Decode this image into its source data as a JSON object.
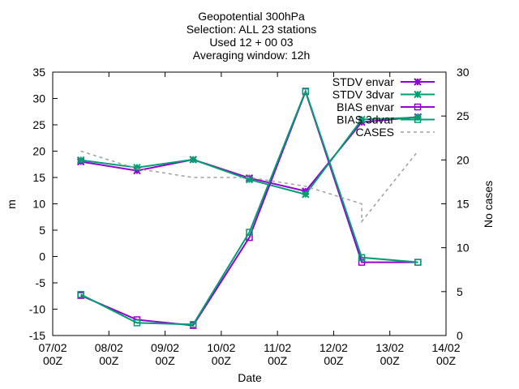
{
  "title_lines": [
    "Geopotential 300hPa",
    "Selection: ALL      23 stations",
    "Used 12 + 00 03",
    "Averaging window: 12h"
  ],
  "colors": {
    "envar": "#9400d3",
    "3dvar": "#009e73",
    "cases": "#a0a0a0"
  },
  "chart_data": {
    "type": "line",
    "title": "Geopotential 300hPa",
    "xlabel": "Date",
    "ylabel": "m",
    "y2label": "No cases",
    "xlim": [
      "2023-02-07T00:00",
      "2023-02-14T00:00"
    ],
    "ylim": [
      -15,
      35
    ],
    "y2lim": [
      0,
      30
    ],
    "grid": false,
    "legend_position": "top-right",
    "x_ticks": [
      {
        "date": "2023-02-07T00:00",
        "line1": "07/02",
        "line2": "00Z"
      },
      {
        "date": "2023-02-08T00:00",
        "line1": "08/02",
        "line2": "00Z"
      },
      {
        "date": "2023-02-09T00:00",
        "line1": "09/02",
        "line2": "00Z"
      },
      {
        "date": "2023-02-10T00:00",
        "line1": "10/02",
        "line2": "00Z"
      },
      {
        "date": "2023-02-11T00:00",
        "line1": "11/02",
        "line2": "00Z"
      },
      {
        "date": "2023-02-12T00:00",
        "line1": "12/02",
        "line2": "00Z"
      },
      {
        "date": "2023-02-13T00:00",
        "line1": "13/02",
        "line2": "00Z"
      },
      {
        "date": "2023-02-14T00:00",
        "line1": "14/02",
        "line2": "00Z"
      }
    ],
    "y_ticks": [
      -15,
      -10,
      -5,
      0,
      5,
      10,
      15,
      20,
      25,
      30,
      35
    ],
    "y2_ticks": [
      0,
      5,
      10,
      15,
      20,
      25,
      30
    ],
    "x": [
      "2023-02-07T12:00",
      "2023-02-08T12:00",
      "2023-02-09T12:00",
      "2023-02-10T12:00",
      "2023-02-11T12:00",
      "2023-02-12T12:00",
      "2023-02-13T12:00"
    ],
    "series": [
      {
        "name": "STDV envar",
        "axis": "y",
        "color_key": "envar",
        "marker": "x",
        "values": [
          18.0,
          16.3,
          18.4,
          14.9,
          12.4,
          25.5,
          26.5
        ]
      },
      {
        "name": "STDV 3dvar",
        "axis": "y",
        "color_key": "3dvar",
        "marker": "x",
        "values": [
          18.3,
          16.9,
          18.4,
          14.6,
          11.8,
          26.0,
          26.4
        ]
      },
      {
        "name": "BIAS envar",
        "axis": "y",
        "color_key": "envar",
        "marker": "square",
        "values": [
          -7.4,
          -12.0,
          -13.1,
          3.6,
          31.3,
          -1.1,
          -1.1
        ]
      },
      {
        "name": "BIAS 3dvar",
        "axis": "y",
        "color_key": "3dvar",
        "marker": "square",
        "values": [
          -7.2,
          -12.6,
          -12.9,
          4.6,
          31.4,
          -0.2,
          -1.1
        ]
      },
      {
        "name": "CASES",
        "axis": "y2",
        "color_key": "cases",
        "marker": "none",
        "dashed": true,
        "x": [
          "2023-02-07T12:00",
          "2023-02-08T12:00",
          "2023-02-09T12:00",
          "2023-02-10T12:00",
          "2023-02-11T12:00",
          "2023-02-12T12:00",
          "2023-02-12T12:00",
          "2023-02-13T12:00"
        ],
        "values": [
          21,
          19,
          18,
          18,
          17,
          15,
          13,
          21
        ]
      }
    ]
  }
}
